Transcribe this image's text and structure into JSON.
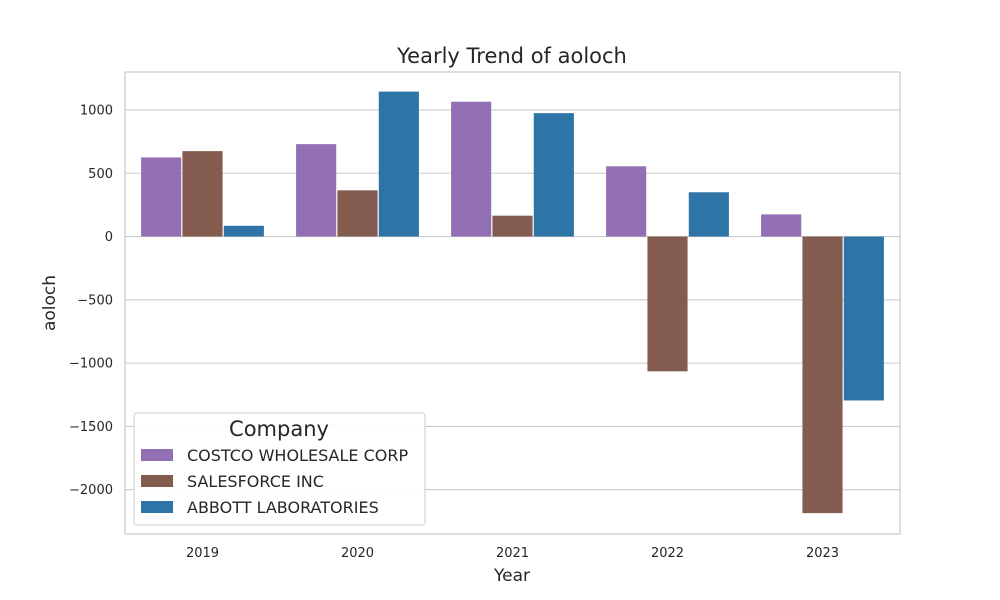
{
  "chart_data": {
    "type": "bar",
    "title": "Yearly Trend of aoloch",
    "xlabel": "Year",
    "ylabel": "aoloch",
    "categories": [
      "2019",
      "2020",
      "2021",
      "2022",
      "2023"
    ],
    "ylim": [
      -2350,
      1300
    ],
    "yticks": [
      -2000,
      -1500,
      -1000,
      -500,
      0,
      500,
      1000
    ],
    "ytick_labels": [
      "−2000",
      "−1500",
      "−1000",
      "−500",
      "0",
      "500",
      "1000"
    ],
    "grid": true,
    "legend": {
      "title": "Company",
      "placement": "lower-left"
    },
    "series": [
      {
        "name": "COSTCO WHOLESALE CORP",
        "color": "#9370b3",
        "values": [
          625,
          730,
          1065,
          555,
          175
        ]
      },
      {
        "name": "SALESFORCE INC",
        "color": "#845c4f",
        "values": [
          675,
          365,
          165,
          -1065,
          -2185
        ]
      },
      {
        "name": "ABBOTT LABORATORIES",
        "color": "#2f74a6",
        "values": [
          85,
          1145,
          975,
          350,
          -1295
        ]
      }
    ]
  }
}
